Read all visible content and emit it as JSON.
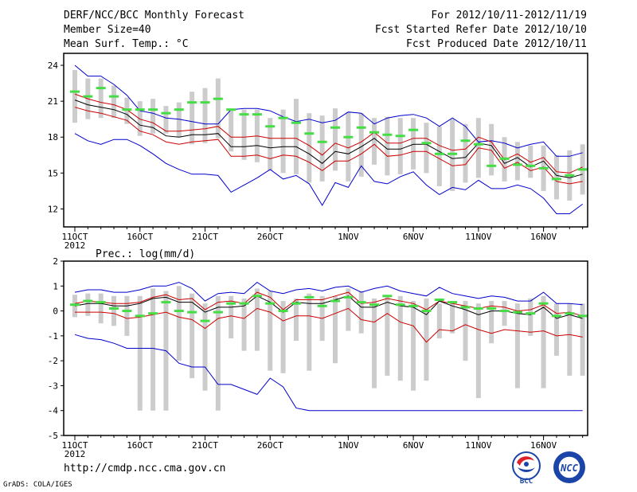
{
  "header": {
    "title": "DERF/NCC/BCC Monthly Forecast",
    "member_size": "Member Size=40",
    "period": "For 2012/10/11-2012/11/19",
    "started": "Fcst Started Refer Date 2012/10/10",
    "produced": "Fcst Produced Date 2012/10/11"
  },
  "footer": {
    "url": "http://cmdp.ncc.cma.gov.cn",
    "grads": "GrADS: COLA/IGES",
    "logo_bcc": "BCC",
    "logo_ncc": "NCC"
  },
  "colors": {
    "envelope": "#0000cc",
    "spread": "#cc0000",
    "mean": "#000000",
    "climatology": "#44dd44",
    "boxes": "#cccccc"
  },
  "chart_data": [
    {
      "type": "line",
      "title": "Mean Surf. Temp.: °C",
      "xlabel": "",
      "ylabel": "°C",
      "ylim": [
        10.5,
        25
      ],
      "yticks": [
        12,
        15,
        18,
        21,
        24
      ],
      "x_day_range": [
        0,
        39
      ],
      "xticks": [
        {
          "day": 0,
          "label": "11OCT",
          "sub": "2012"
        },
        {
          "day": 5,
          "label": "16OCT"
        },
        {
          "day": 10,
          "label": "21OCT"
        },
        {
          "day": 15,
          "label": "26OCT"
        },
        {
          "day": 21,
          "label": "1NOV"
        },
        {
          "day": 26,
          "label": "6NOV"
        },
        {
          "day": 31,
          "label": "11NOV"
        },
        {
          "day": 36,
          "label": "16NOV"
        }
      ],
      "series": [
        {
          "name": "ensemble max",
          "values": [
            24.0,
            23.1,
            23.1,
            22.4,
            21.5,
            20.2,
            20.0,
            19.6,
            19.5,
            19.3,
            19.1,
            19.1,
            20.3,
            20.4,
            20.4,
            20.2,
            19.7,
            19.3,
            19.5,
            19.2,
            19.4,
            20.1,
            20.0,
            19.1,
            19.6,
            19.8,
            19.9,
            19.6,
            18.9,
            19.6,
            18.9,
            17.6,
            17.7,
            17.5,
            17.1,
            17.4,
            17.6,
            16.4,
            16.4,
            16.7
          ]
        },
        {
          "name": "upper spread",
          "values": [
            21.6,
            21.2,
            20.9,
            20.7,
            20.3,
            19.5,
            19.2,
            18.5,
            18.5,
            18.6,
            18.7,
            18.9,
            18.0,
            18.0,
            18.1,
            17.9,
            17.9,
            17.9,
            17.3,
            16.5,
            17.5,
            17.1,
            17.6,
            18.4,
            17.5,
            17.5,
            17.9,
            17.9,
            17.3,
            16.9,
            17.0,
            18.0,
            17.6,
            16.1,
            16.6,
            15.9,
            16.3,
            15.1,
            15.0,
            15.5
          ]
        },
        {
          "name": "ensemble mean",
          "values": [
            21.1,
            20.7,
            20.5,
            20.3,
            19.9,
            19.0,
            18.8,
            18.1,
            18.0,
            18.2,
            18.2,
            18.3,
            17.2,
            17.2,
            17.3,
            17.1,
            17.2,
            17.2,
            16.6,
            15.8,
            16.8,
            16.6,
            17.2,
            17.9,
            17.0,
            17.0,
            17.4,
            17.4,
            16.8,
            16.2,
            16.3,
            17.5,
            17.3,
            15.8,
            16.3,
            15.5,
            16.0,
            14.8,
            14.6,
            14.9
          ]
        },
        {
          "name": "lower spread",
          "values": [
            20.5,
            20.2,
            20.0,
            19.7,
            19.4,
            18.5,
            18.2,
            17.6,
            17.4,
            17.6,
            17.7,
            17.8,
            16.4,
            16.4,
            16.5,
            16.2,
            16.5,
            16.4,
            15.9,
            15.2,
            16.0,
            16.0,
            16.6,
            17.4,
            16.4,
            16.5,
            16.8,
            16.8,
            16.2,
            15.6,
            15.7,
            17.1,
            16.9,
            15.4,
            15.9,
            15.2,
            15.5,
            14.3,
            14.1,
            14.3
          ]
        },
        {
          "name": "ensemble min",
          "values": [
            18.3,
            17.7,
            17.4,
            17.8,
            17.8,
            17.3,
            16.6,
            15.8,
            15.3,
            14.9,
            14.9,
            14.8,
            13.4,
            14.0,
            14.6,
            15.3,
            14.5,
            14.8,
            14.1,
            12.3,
            14.2,
            13.8,
            15.6,
            14.3,
            14.1,
            14.7,
            15.1,
            14.0,
            13.2,
            13.8,
            13.6,
            14.4,
            13.7,
            13.7,
            14.0,
            13.7,
            12.9,
            11.6,
            11.6,
            12.4
          ]
        }
      ],
      "climatology": [
        21.8,
        21.4,
        22.1,
        21.4,
        20.3,
        20.3,
        20.3,
        20.0,
        20.3,
        20.9,
        20.9,
        21.2,
        20.3,
        19.9,
        19.9,
        18.9,
        19.6,
        19.2,
        18.3,
        17.6,
        18.8,
        18.0,
        18.8,
        18.4,
        18.2,
        18.1,
        18.6,
        17.5,
        16.6,
        16.6,
        17.7,
        17.4,
        15.6,
        16.2,
        15.7,
        15.6,
        15.4,
        14.5,
        14.8,
        15.3
      ],
      "boxes": [
        [
          19.2,
          23.6
        ],
        [
          19.5,
          22.9
        ],
        [
          19.6,
          22.9
        ],
        [
          19.6,
          22.3
        ],
        [
          19.1,
          21.3
        ],
        [
          18.1,
          21.0
        ],
        [
          18.3,
          21.2
        ],
        [
          18.3,
          20.6
        ],
        [
          18.0,
          20.9
        ],
        [
          17.4,
          21.8
        ],
        [
          17.5,
          22.1
        ],
        [
          17.9,
          22.9
        ],
        [
          16.8,
          20.3
        ],
        [
          16.1,
          20.3
        ],
        [
          15.9,
          20.3
        ],
        [
          15.2,
          19.6
        ],
        [
          15.0,
          20.3
        ],
        [
          14.9,
          21.2
        ],
        [
          14.2,
          20.0
        ],
        [
          14.3,
          19.8
        ],
        [
          15.2,
          20.4
        ],
        [
          14.3,
          20.1
        ],
        [
          14.7,
          20.0
        ],
        [
          15.7,
          19.6
        ],
        [
          14.8,
          19.7
        ],
        [
          14.9,
          19.6
        ],
        [
          15.3,
          19.6
        ],
        [
          15.0,
          19.2
        ],
        [
          13.9,
          18.9
        ],
        [
          13.5,
          19.5
        ],
        [
          14.2,
          19.1
        ],
        [
          14.6,
          19.6
        ],
        [
          14.8,
          19.1
        ],
        [
          14.3,
          18.0
        ],
        [
          14.4,
          17.6
        ],
        [
          14.6,
          17.3
        ],
        [
          13.5,
          17.3
        ],
        [
          12.8,
          16.5
        ],
        [
          12.7,
          16.9
        ],
        [
          13.2,
          17.4
        ]
      ]
    },
    {
      "type": "line",
      "title": "Prec.: log(mm/d)",
      "xlabel": "",
      "ylabel": "log(mm/d)",
      "ylim": [
        -5,
        2
      ],
      "yticks": [
        -5,
        -4,
        -3,
        -2,
        -1,
        0,
        1,
        2
      ],
      "x_day_range": [
        0,
        39
      ],
      "xticks": [
        {
          "day": 0,
          "label": "11OCT",
          "sub": "2012"
        },
        {
          "day": 5,
          "label": "16OCT"
        },
        {
          "day": 10,
          "label": "21OCT"
        },
        {
          "day": 15,
          "label": "26OCT"
        },
        {
          "day": 21,
          "label": "1NOV"
        },
        {
          "day": 26,
          "label": "6NOV"
        },
        {
          "day": 31,
          "label": "11NOV"
        },
        {
          "day": 36,
          "label": "16NOV"
        }
      ],
      "series": [
        {
          "name": "ensemble max",
          "values": [
            0.75,
            0.85,
            0.85,
            0.75,
            0.75,
            0.85,
            1.0,
            1.0,
            1.15,
            0.9,
            0.4,
            0.7,
            0.75,
            0.7,
            1.15,
            0.8,
            0.7,
            0.85,
            0.9,
            0.8,
            0.95,
            1.0,
            0.75,
            0.9,
            1.0,
            0.8,
            0.7,
            0.6,
            0.95,
            0.7,
            0.6,
            0.5,
            0.6,
            0.55,
            0.4,
            0.4,
            0.75,
            0.3,
            0.3,
            0.25
          ]
        },
        {
          "name": "upper spread",
          "values": [
            0.3,
            0.4,
            0.35,
            0.3,
            0.3,
            0.35,
            0.55,
            0.65,
            0.45,
            0.5,
            0.05,
            0.35,
            0.4,
            0.3,
            0.75,
            0.55,
            0.05,
            0.45,
            0.45,
            0.45,
            0.6,
            0.75,
            0.3,
            0.35,
            0.5,
            0.4,
            0.3,
            0.05,
            0.4,
            0.3,
            0.2,
            0.1,
            0.2,
            0.15,
            0.0,
            0.05,
            0.25,
            -0.1,
            -0.05,
            -0.2
          ]
        },
        {
          "name": "ensemble mean",
          "values": [
            0.2,
            0.3,
            0.3,
            0.2,
            0.2,
            0.3,
            0.5,
            0.55,
            0.35,
            0.35,
            -0.05,
            0.15,
            0.15,
            0.2,
            0.6,
            0.35,
            -0.05,
            0.35,
            0.3,
            0.3,
            0.45,
            0.6,
            0.15,
            0.15,
            0.35,
            0.2,
            0.15,
            -0.15,
            0.4,
            0.2,
            0.05,
            -0.15,
            0.0,
            0.0,
            -0.1,
            -0.15,
            0.15,
            -0.3,
            -0.15,
            -0.3
          ]
        },
        {
          "name": "lower spread",
          "values": [
            -0.05,
            -0.05,
            -0.05,
            -0.1,
            -0.3,
            -0.25,
            -0.15,
            -0.05,
            -0.25,
            -0.35,
            -0.7,
            -0.3,
            -0.2,
            -0.3,
            0.1,
            -0.05,
            -0.4,
            -0.2,
            -0.2,
            -0.3,
            -0.1,
            0.1,
            -0.35,
            -0.45,
            -0.1,
            -0.45,
            -0.6,
            -1.25,
            -0.75,
            -0.8,
            -0.55,
            -0.75,
            -0.9,
            -0.75,
            -0.8,
            -0.85,
            -0.8,
            -1.0,
            -0.95,
            -1.05
          ]
        },
        {
          "name": "ensemble min",
          "values": [
            -0.95,
            -1.1,
            -1.15,
            -1.3,
            -1.5,
            -1.5,
            -1.5,
            -1.6,
            -2.1,
            -2.25,
            -2.25,
            -2.95,
            -2.95,
            -3.15,
            -3.35,
            -2.7,
            -3.05,
            -3.9,
            -4.0,
            -4.0,
            -4.0,
            -4.0,
            -4.0,
            -4.0,
            -4.0,
            -4.0,
            -4.0,
            -4.0,
            -4.0,
            -4.0,
            -4.0,
            -4.0,
            -4.0,
            -4.0,
            -4.0,
            -4.0,
            -4.0,
            -4.0,
            -4.0,
            -4.0
          ]
        }
      ],
      "climatology": [
        0.25,
        0.4,
        0.35,
        0.1,
        0.0,
        -0.2,
        -0.1,
        0.35,
        0.0,
        -0.05,
        -0.4,
        -0.05,
        0.3,
        0.3,
        0.6,
        0.3,
        0.0,
        0.3,
        0.55,
        0.2,
        0.4,
        0.55,
        0.35,
        0.25,
        0.6,
        0.25,
        0.2,
        0.0,
        0.45,
        0.35,
        0.15,
        0.1,
        0.1,
        0.0,
        -0.05,
        -0.1,
        0.3,
        -0.2,
        -0.1,
        -0.2
      ],
      "boxes": [
        [
          -0.25,
          0.65
        ],
        [
          -0.2,
          0.7
        ],
        [
          -0.5,
          0.7
        ],
        [
          -0.6,
          0.6
        ],
        [
          -1.0,
          0.6
        ],
        [
          -4.0,
          0.6
        ],
        [
          -4.0,
          0.9
        ],
        [
          -4.0,
          0.8
        ],
        [
          -2.0,
          1.0
        ],
        [
          -2.7,
          0.7
        ],
        [
          -3.2,
          0.3
        ],
        [
          -4.0,
          0.6
        ],
        [
          -1.1,
          0.6
        ],
        [
          -1.6,
          0.5
        ],
        [
          -1.6,
          0.9
        ],
        [
          -2.4,
          0.8
        ],
        [
          -2.5,
          0.4
        ],
        [
          -1.2,
          0.5
        ],
        [
          -2.4,
          0.7
        ],
        [
          -1.2,
          0.6
        ],
        [
          -2.1,
          0.6
        ],
        [
          -0.8,
          0.9
        ],
        [
          -0.9,
          0.8
        ],
        [
          -3.1,
          0.5
        ],
        [
          -2.6,
          0.6
        ],
        [
          -2.8,
          0.6
        ],
        [
          -3.2,
          0.4
        ],
        [
          -2.8,
          0.5
        ],
        [
          -1.1,
          0.3
        ],
        [
          -0.9,
          0.4
        ],
        [
          -2.0,
          0.4
        ],
        [
          -3.5,
          0.3
        ],
        [
          -1.3,
          0.4
        ],
        [
          -0.6,
          0.4
        ],
        [
          -3.1,
          0.3
        ],
        [
          -1.0,
          0.5
        ],
        [
          -3.1,
          0.6
        ],
        [
          -1.8,
          0.3
        ],
        [
          -2.6,
          0.3
        ],
        [
          -2.6,
          0.3
        ]
      ]
    }
  ]
}
